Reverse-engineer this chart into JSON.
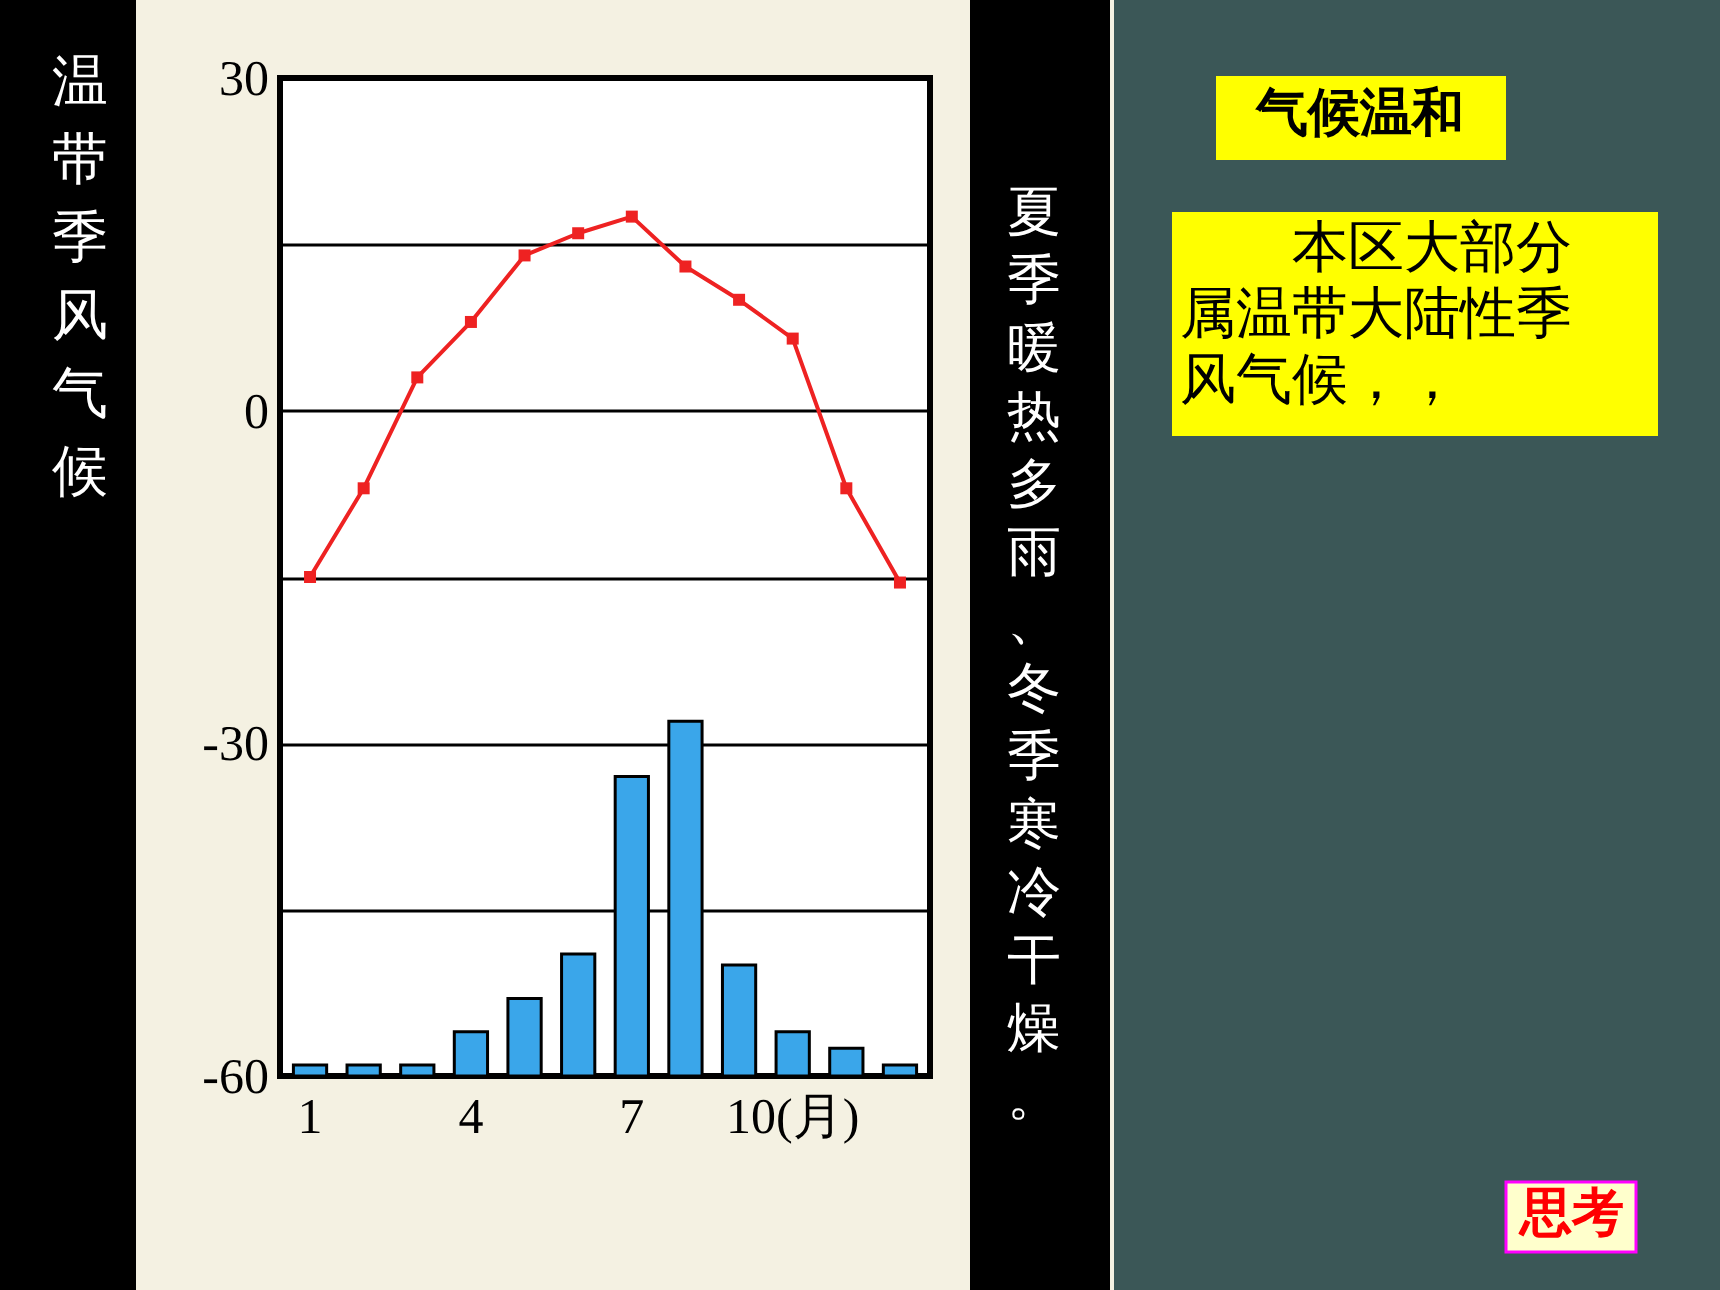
{
  "chart_data": {
    "type": "bar",
    "title": "温带季风气候",
    "annotations": [
      "夏季暖热多雨、冬季寒冷干燥。",
      "气候温和",
      "本区大部分属温带大陆性季风气候，，",
      "思考"
    ],
    "categories": [
      "1",
      null,
      null,
      "4",
      null,
      null,
      "7",
      null,
      null,
      "10(月)",
      null,
      null
    ],
    "series": [
      {
        "color": "#3aa6ea",
        "base": [
          -60,
          -60,
          -60,
          -60,
          -60,
          -60,
          -60,
          -60,
          -60,
          -60,
          -60,
          -60
        ],
        "values": [
          1,
          1,
          1,
          4,
          7,
          11,
          27,
          32,
          10,
          4,
          2.5,
          1
        ]
      },
      {
        "type": "line",
        "color": "#ee2222",
        "values": [
          -15,
          -7,
          3,
          8,
          14,
          16,
          17.5,
          13,
          10,
          6.5,
          -7,
          -15.5
        ]
      }
    ],
    "marker": "square",
    "ylim": [
      -60,
      30
    ],
    "yticks": [
      30,
      {
        "value": 15,
        "label": null
      },
      0,
      {
        "value": -15,
        "label": null
      },
      -30,
      {
        "value": -45,
        "label": null
      },
      -60
    ],
    "grid": "y"
  }
}
